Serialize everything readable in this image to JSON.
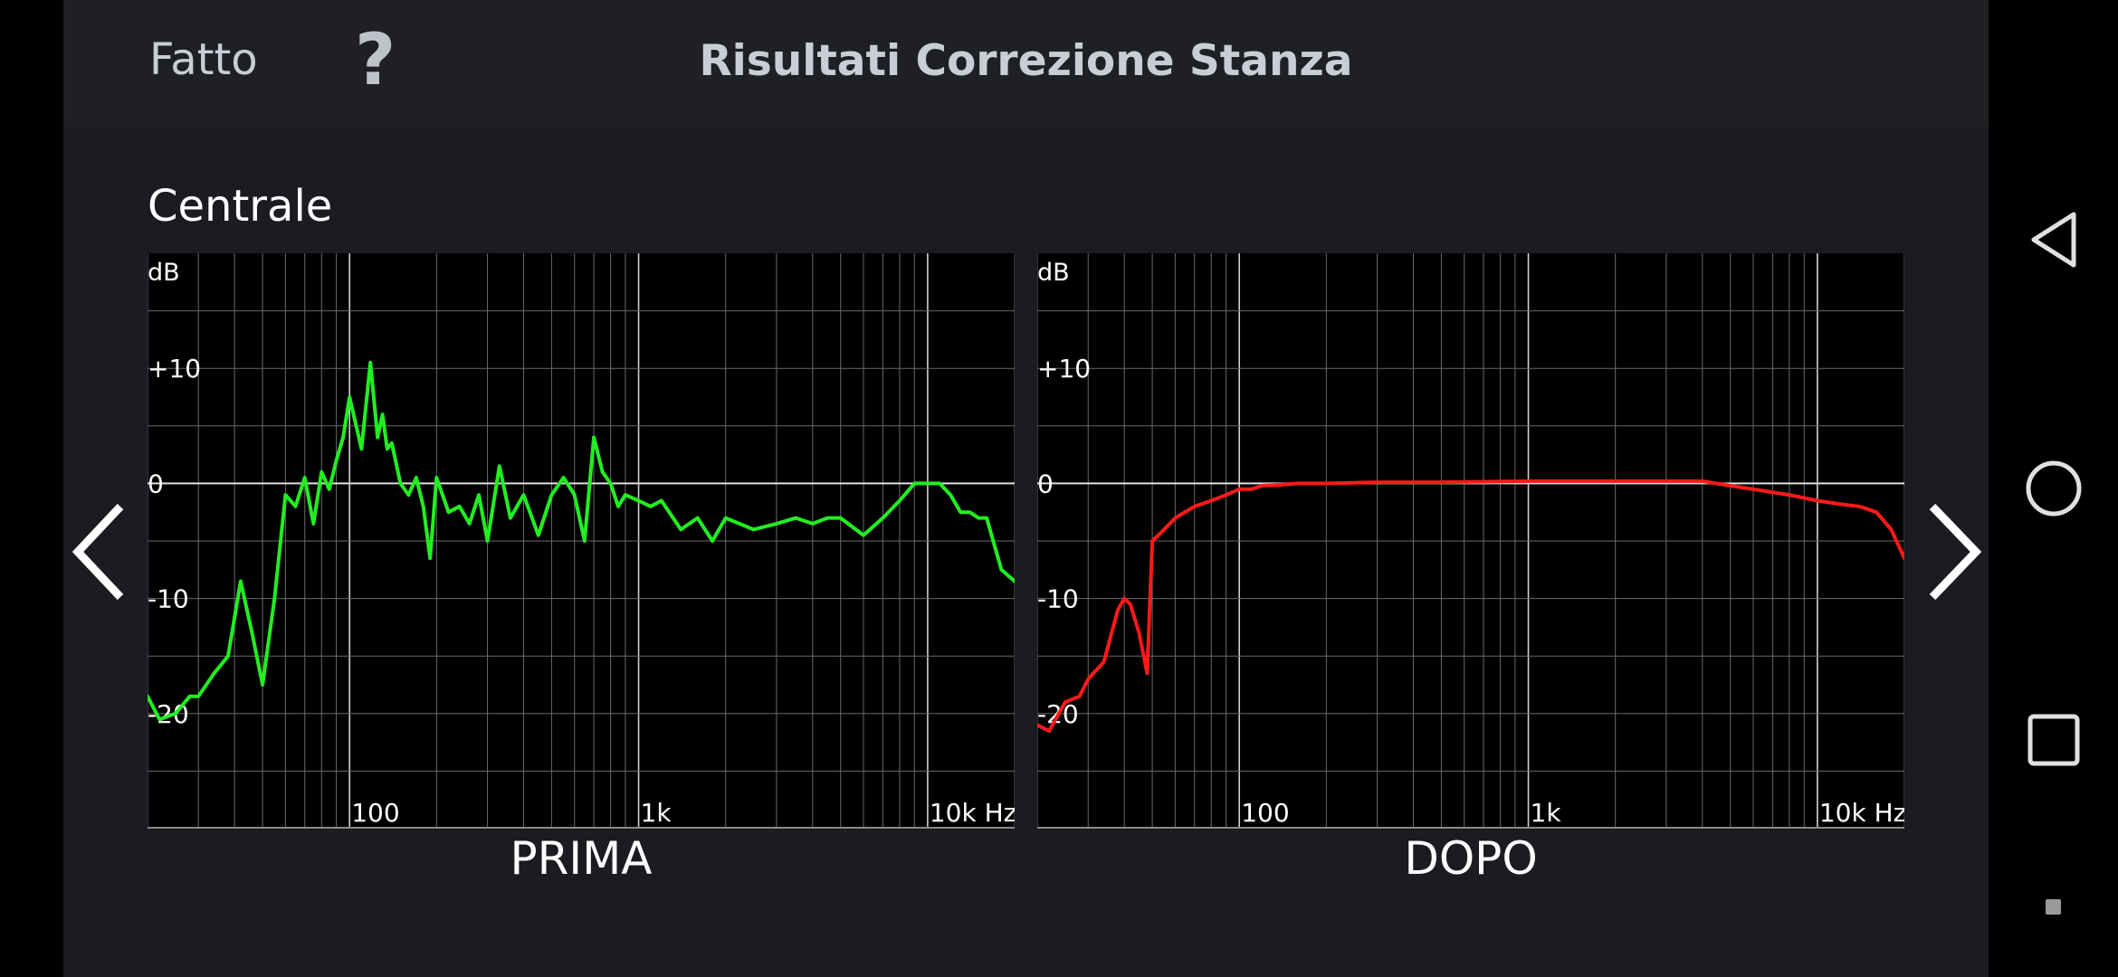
{
  "header": {
    "done_label": "Fatto",
    "help_label": "?",
    "title": "Risultati Correzione Stanza"
  },
  "section_label": "Centrale",
  "nav_icons": {
    "prev": "chevron-left-icon",
    "next": "chevron-right-icon"
  },
  "system_nav": {
    "back": "back-icon",
    "home": "home-icon",
    "recents": "recents-icon"
  },
  "chart_data": [
    {
      "type": "line",
      "title": "PRIMA",
      "color": "#22ee22",
      "ylabel": "dB",
      "y_ticks": [
        "+10",
        "0",
        "-10",
        "-20"
      ],
      "x_ticks": [
        "100",
        "1k",
        "10k Hz"
      ],
      "xscale": "log",
      "xlim": [
        20,
        20000
      ],
      "ylim": [
        -30,
        20
      ],
      "grid": true,
      "x": [
        20,
        22,
        25,
        28,
        30,
        34,
        38,
        42,
        46,
        50,
        55,
        60,
        65,
        70,
        75,
        80,
        85,
        90,
        95,
        100,
        110,
        118,
        125,
        130,
        135,
        140,
        150,
        160,
        170,
        180,
        190,
        200,
        220,
        240,
        260,
        280,
        300,
        330,
        360,
        400,
        450,
        500,
        550,
        600,
        650,
        700,
        750,
        800,
        850,
        900,
        1000,
        1100,
        1200,
        1400,
        1600,
        1800,
        2000,
        2500,
        3000,
        3500,
        4000,
        4500,
        5000,
        6000,
        7000,
        8000,
        9000,
        10000,
        11000,
        12000,
        13000,
        14000,
        15000,
        16000,
        18000,
        20000
      ],
      "y": [
        -18.5,
        -20.5,
        -20,
        -18.5,
        -18.5,
        -16.5,
        -15,
        -8.5,
        -13,
        -17.5,
        -10,
        -1,
        -2,
        0.5,
        -3.5,
        1,
        -0.5,
        2,
        4,
        7.5,
        3,
        10.5,
        4,
        6,
        3,
        3.5,
        0,
        -1,
        0.5,
        -2,
        -6.5,
        0.5,
        -2.5,
        -2,
        -3.5,
        -1,
        -5,
        1.5,
        -3,
        -1,
        -4.5,
        -1,
        0.5,
        -1,
        -5,
        4,
        1,
        0,
        -2,
        -1,
        -1.5,
        -2,
        -1.5,
        -4,
        -3,
        -5,
        -3,
        -4,
        -3.5,
        -3,
        -3.5,
        -3,
        -3,
        -4.5,
        -3,
        -1.5,
        0,
        0,
        0,
        -1,
        -2.5,
        -2.5,
        -3,
        -3,
        -7.5,
        -8.5
      ]
    },
    {
      "type": "line",
      "title": "DOPO",
      "color": "#ff1a1a",
      "ylabel": "dB",
      "y_ticks": [
        "+10",
        "0",
        "-10",
        "-20"
      ],
      "x_ticks": [
        "100",
        "1k",
        "10k Hz"
      ],
      "xscale": "log",
      "xlim": [
        20,
        20000
      ],
      "ylim": [
        -30,
        20
      ],
      "grid": true,
      "x": [
        20,
        22,
        25,
        28,
        30,
        34,
        38,
        40,
        42,
        45,
        48,
        50,
        55,
        60,
        70,
        80,
        90,
        100,
        110,
        120,
        140,
        160,
        200,
        300,
        500,
        1000,
        2000,
        3000,
        4000,
        5000,
        6000,
        8000,
        10000,
        12000,
        14000,
        16000,
        18000,
        20000
      ],
      "y": [
        -21,
        -21.5,
        -19,
        -18.5,
        -17,
        -15.5,
        -11,
        -10,
        -10.5,
        -13,
        -16.5,
        -5,
        -4,
        -3,
        -2,
        -1.5,
        -1,
        -0.5,
        -0.5,
        -0.2,
        -0.1,
        0,
        0,
        0.1,
        0.1,
        0.2,
        0.2,
        0.2,
        0.2,
        -0.2,
        -0.5,
        -1,
        -1.5,
        -1.8,
        -2,
        -2.5,
        -4,
        -6.5
      ]
    }
  ]
}
